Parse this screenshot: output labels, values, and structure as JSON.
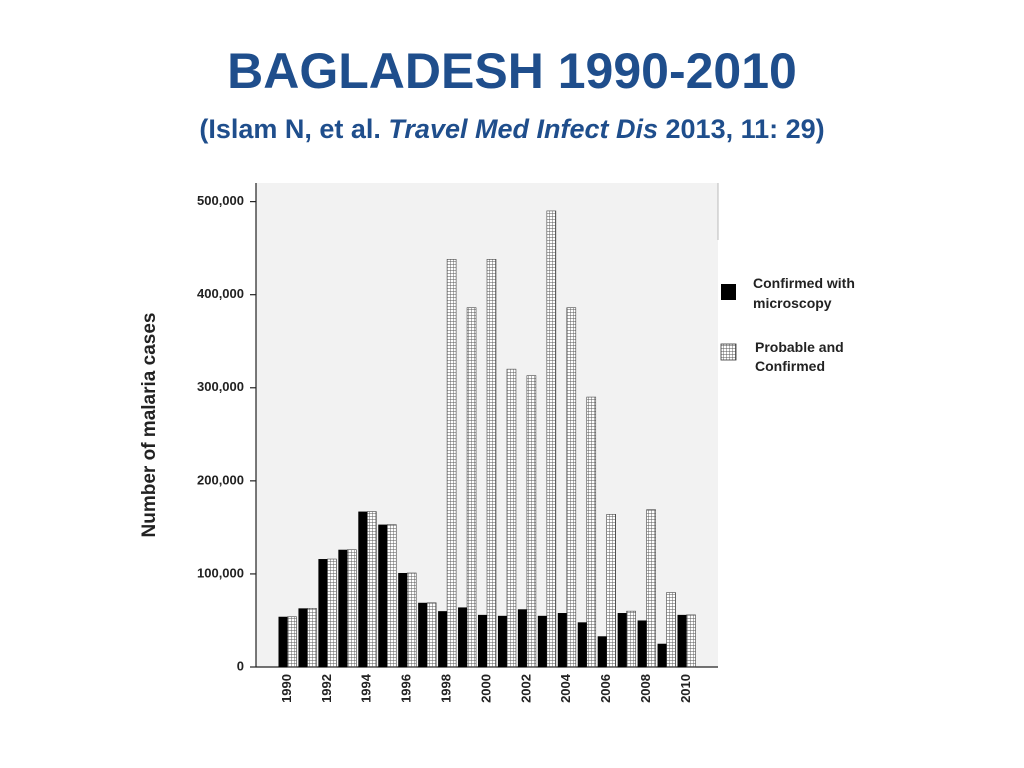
{
  "slide": {
    "title": "BAGLADESH 1990-2010",
    "subtitle_prefix": "(Islam N, et al. ",
    "subtitle_italic": "Travel Med Infect Dis",
    "subtitle_suffix": " 2013, 11: 29)"
  },
  "colors": {
    "title": "#1f4e8c",
    "confirmed": "#000000",
    "probable_fill": "#ffffff",
    "probable_grid": "#555555",
    "plot_bg": "#f2f2f2"
  },
  "chart_data": {
    "type": "bar",
    "ylabel": "Number of malaria cases",
    "xlabel": "",
    "ylim": [
      0,
      520000
    ],
    "yticks": [
      0,
      100000,
      200000,
      300000,
      400000,
      500000
    ],
    "ytick_labels": [
      "0",
      "100,000",
      "200,000",
      "300,000",
      "400,000",
      "500,000"
    ],
    "categories": [
      "1990",
      "1991",
      "1992",
      "1993",
      "1994",
      "1995",
      "1996",
      "1997",
      "1998",
      "1999",
      "2000",
      "2001",
      "2002",
      "2003",
      "2004",
      "2005",
      "2006",
      "2007",
      "2008",
      "2009",
      "2010"
    ],
    "xtick_labels": [
      "1990",
      "",
      "1992",
      "",
      "1994",
      "",
      "1996",
      "",
      "1998",
      "",
      "2000",
      "",
      "2002",
      "",
      "2004",
      "",
      "2006",
      "",
      "2008",
      "",
      "2010"
    ],
    "legend_position": "right",
    "series": [
      {
        "name_line1": "Confirmed with",
        "name_line2": "microscopy",
        "style": "solid",
        "values": [
          54000,
          63000,
          116000,
          126000,
          167000,
          153000,
          101000,
          69000,
          60000,
          64000,
          56000,
          55000,
          62000,
          55000,
          58000,
          48000,
          33000,
          58000,
          50000,
          25000,
          56000
        ]
      },
      {
        "name_line1": "Probable and",
        "name_line2": "Confirmed",
        "style": "grid",
        "values": [
          54000,
          63000,
          116000,
          126000,
          167000,
          153000,
          101000,
          69000,
          438000,
          386000,
          438000,
          320000,
          313000,
          490000,
          386000,
          290000,
          164000,
          60000,
          169000,
          80000,
          56000
        ]
      }
    ]
  }
}
